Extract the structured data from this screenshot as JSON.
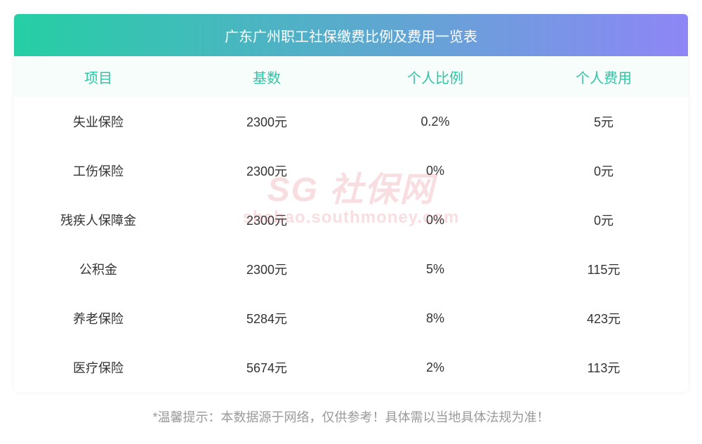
{
  "title": "广东广州职工社保缴费比例及费用一览表",
  "title_gradient": {
    "from": "#25cfa4",
    "to": "#8e86f6"
  },
  "columns": [
    "项目",
    "基数",
    "个人比例",
    "个人费用"
  ],
  "column_header_color": "#2ec6a4",
  "header_row_bg": "#f6fdfb",
  "body_text_color": "#333333",
  "rows": [
    [
      "失业保险",
      "2300元",
      "0.2%",
      "5元"
    ],
    [
      "工伤保险",
      "2300元",
      "0%",
      "0元"
    ],
    [
      "残疾人保障金",
      "2300元",
      "0%",
      "0元"
    ],
    [
      "公积金",
      "2300元",
      "5%",
      "115元"
    ],
    [
      "养老保险",
      "5284元",
      "8%",
      "423元"
    ],
    [
      "医疗保险",
      "5674元",
      "2%",
      "113元"
    ]
  ],
  "footer_note": "*温馨提示：本数据源于网络，仅供参考！具体需以当地具体法规为准！",
  "footer_color": "#9a9a9a",
  "watermark": {
    "main": "SG 社保网",
    "sub": "shebao.southmoney.com",
    "color": "rgba(220,70,90,0.18)"
  }
}
